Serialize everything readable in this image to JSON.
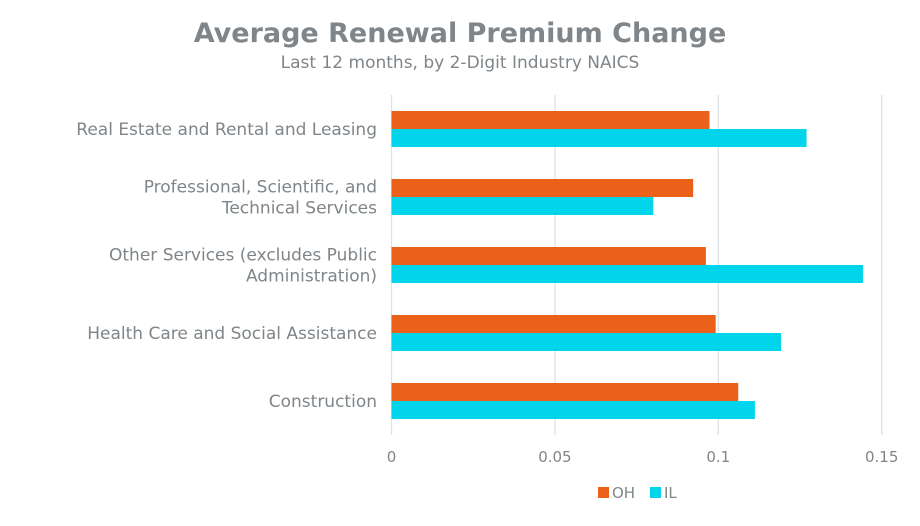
{
  "chart_data": {
    "type": "bar",
    "orientation": "horizontal",
    "title": "Average Renewal Premium Change",
    "subtitle": "Last 12 months, by 2-Digit Industry NAICS",
    "categories": [
      [
        "Real Estate and Rental and Leasing"
      ],
      [
        "Professional, Scientific, and",
        "Technical Services"
      ],
      [
        "Other Services (excludes Public",
        "Administration)"
      ],
      [
        "Health Care and Social Assistance"
      ],
      [
        "Construction"
      ]
    ],
    "series": [
      {
        "name": "OH",
        "color": "#EC611A",
        "values": [
          0.0973,
          0.0923,
          0.0962,
          0.0992,
          0.1061
        ]
      },
      {
        "name": "IL",
        "color": "#00D5EB",
        "values": [
          0.127,
          0.0801,
          0.1443,
          0.1192,
          0.1112
        ]
      }
    ],
    "xlim": [
      0,
      0.15
    ],
    "xticks": [
      "0",
      "0.05",
      "0.1",
      "0.15"
    ],
    "grid": true,
    "legend": "bottom"
  }
}
